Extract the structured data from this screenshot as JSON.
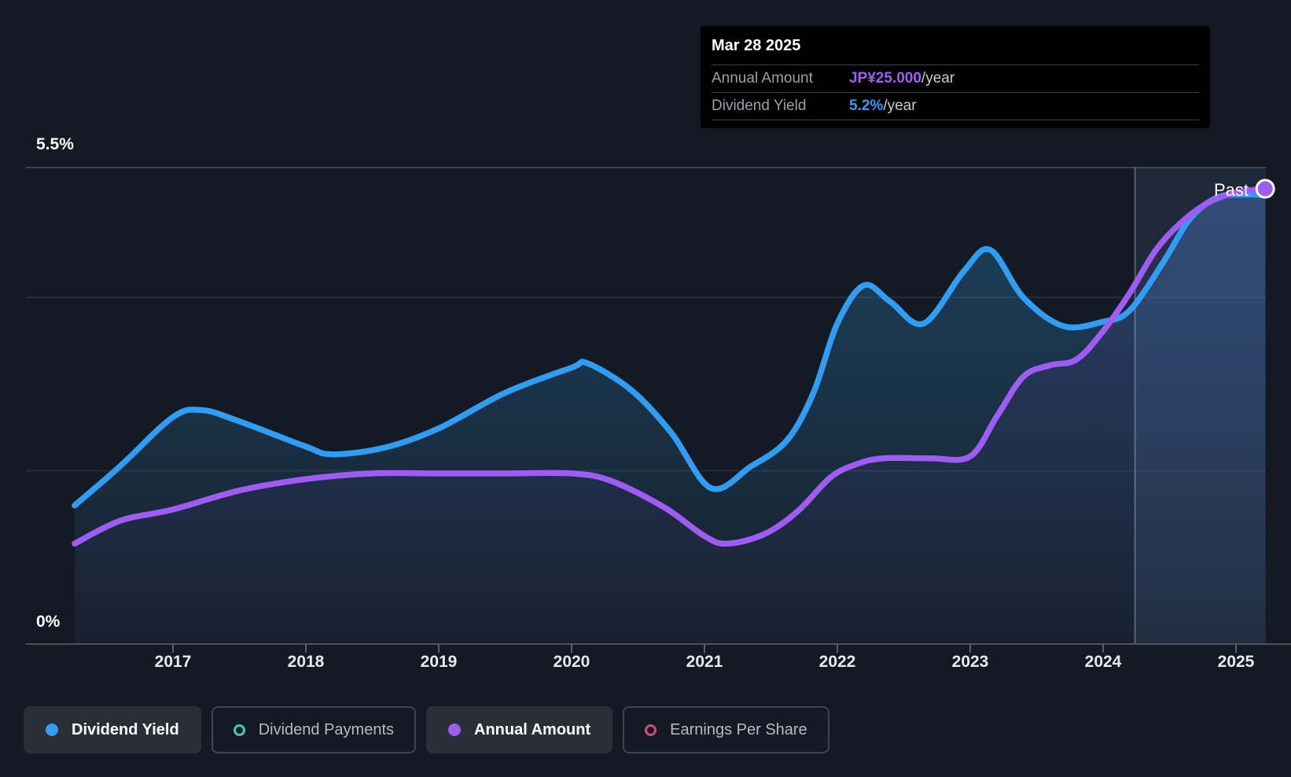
{
  "tooltip": {
    "date": "Mar 28 2025",
    "rows": [
      {
        "label": "Annual Amount",
        "value": "JP¥25.000",
        "suffix": "/year",
        "color": "#9f5cf3"
      },
      {
        "label": "Dividend Yield",
        "value": "5.2%",
        "suffix": "/year",
        "color": "#2f9df3"
      }
    ]
  },
  "y_axis": {
    "max_label": "5.5%",
    "min_label": "0%"
  },
  "x_axis": {
    "years": [
      "2017",
      "2018",
      "2019",
      "2020",
      "2021",
      "2022",
      "2023",
      "2024",
      "2025"
    ]
  },
  "past_label": "Past",
  "legend": [
    {
      "label": "Dividend Yield",
      "color": "#2f9df3",
      "style": "filled",
      "active": true
    },
    {
      "label": "Dividend Payments",
      "color": "#46c8b2",
      "style": "ring",
      "active": false
    },
    {
      "label": "Annual Amount",
      "color": "#9f5cf3",
      "style": "filled",
      "active": true
    },
    {
      "label": "Earnings Per Share",
      "color": "#d6487f",
      "style": "ring",
      "active": false
    }
  ],
  "chart_data": {
    "type": "area",
    "title": "Dividend yield and payments history to Mar 28 2025",
    "x_range": [
      2016.26,
      2025.22
    ],
    "yield_axis": {
      "min": 0,
      "max": 5.5,
      "gridlines_pct": [
        5.5,
        4,
        2,
        0
      ],
      "unit": "%"
    },
    "amount_axis": {
      "unit": "JP¥",
      "note": "right-hand implicit scale, JP¥10 aligns near 2%"
    },
    "today_x": 2024.24,
    "highlight_range": [
      2024.24,
      2025.23
    ],
    "end_marker": {
      "x": 2025.22,
      "amount": 25.0,
      "yield_pct": 5.2
    },
    "series": [
      {
        "name": "Dividend Yield",
        "unit": "%",
        "color": "#2f9df3",
        "points": [
          [
            2016.26,
            1.6
          ],
          [
            2016.6,
            2.05
          ],
          [
            2017.0,
            2.62
          ],
          [
            2017.22,
            2.7
          ],
          [
            2017.5,
            2.57
          ],
          [
            2018.0,
            2.28
          ],
          [
            2018.2,
            2.19
          ],
          [
            2018.6,
            2.27
          ],
          [
            2019.0,
            2.49
          ],
          [
            2019.5,
            2.9
          ],
          [
            2020.0,
            3.19
          ],
          [
            2020.12,
            3.24
          ],
          [
            2020.45,
            2.93
          ],
          [
            2020.75,
            2.44
          ],
          [
            2021.05,
            1.8
          ],
          [
            2021.35,
            2.05
          ],
          [
            2021.62,
            2.35
          ],
          [
            2021.82,
            2.9
          ],
          [
            2022.0,
            3.7
          ],
          [
            2022.2,
            4.14
          ],
          [
            2022.4,
            3.95
          ],
          [
            2022.65,
            3.7
          ],
          [
            2022.95,
            4.3
          ],
          [
            2023.15,
            4.55
          ],
          [
            2023.4,
            4.0
          ],
          [
            2023.7,
            3.67
          ],
          [
            2024.0,
            3.72
          ],
          [
            2024.2,
            3.85
          ],
          [
            2024.45,
            4.4
          ],
          [
            2024.65,
            4.9
          ],
          [
            2024.85,
            5.15
          ],
          [
            2025.05,
            5.19
          ],
          [
            2025.22,
            5.18
          ]
        ]
      },
      {
        "name": "Annual Amount",
        "unit": "JP¥",
        "color": "#9f5cf3",
        "points": [
          [
            2016.26,
            6.3
          ],
          [
            2016.6,
            7.5
          ],
          [
            2017.0,
            8.1
          ],
          [
            2017.5,
            9.1
          ],
          [
            2018.0,
            9.7
          ],
          [
            2018.5,
            10.0
          ],
          [
            2019.0,
            10.0
          ],
          [
            2019.5,
            10.0
          ],
          [
            2020.0,
            10.0
          ],
          [
            2020.3,
            9.6
          ],
          [
            2020.7,
            8.2
          ],
          [
            2021.0,
            6.7
          ],
          [
            2021.17,
            6.3
          ],
          [
            2021.45,
            6.8
          ],
          [
            2021.7,
            8.0
          ],
          [
            2021.95,
            9.8
          ],
          [
            2022.15,
            10.5
          ],
          [
            2022.35,
            10.8
          ],
          [
            2022.7,
            10.8
          ],
          [
            2023.0,
            10.9
          ],
          [
            2023.2,
            13.0
          ],
          [
            2023.4,
            15.1
          ],
          [
            2023.6,
            15.7
          ],
          [
            2023.8,
            16.0
          ],
          [
            2024.0,
            17.5
          ],
          [
            2024.2,
            19.5
          ],
          [
            2024.4,
            21.8
          ],
          [
            2024.6,
            23.3
          ],
          [
            2024.8,
            24.3
          ],
          [
            2025.0,
            24.8
          ],
          [
            2025.22,
            25.0
          ]
        ]
      }
    ]
  }
}
